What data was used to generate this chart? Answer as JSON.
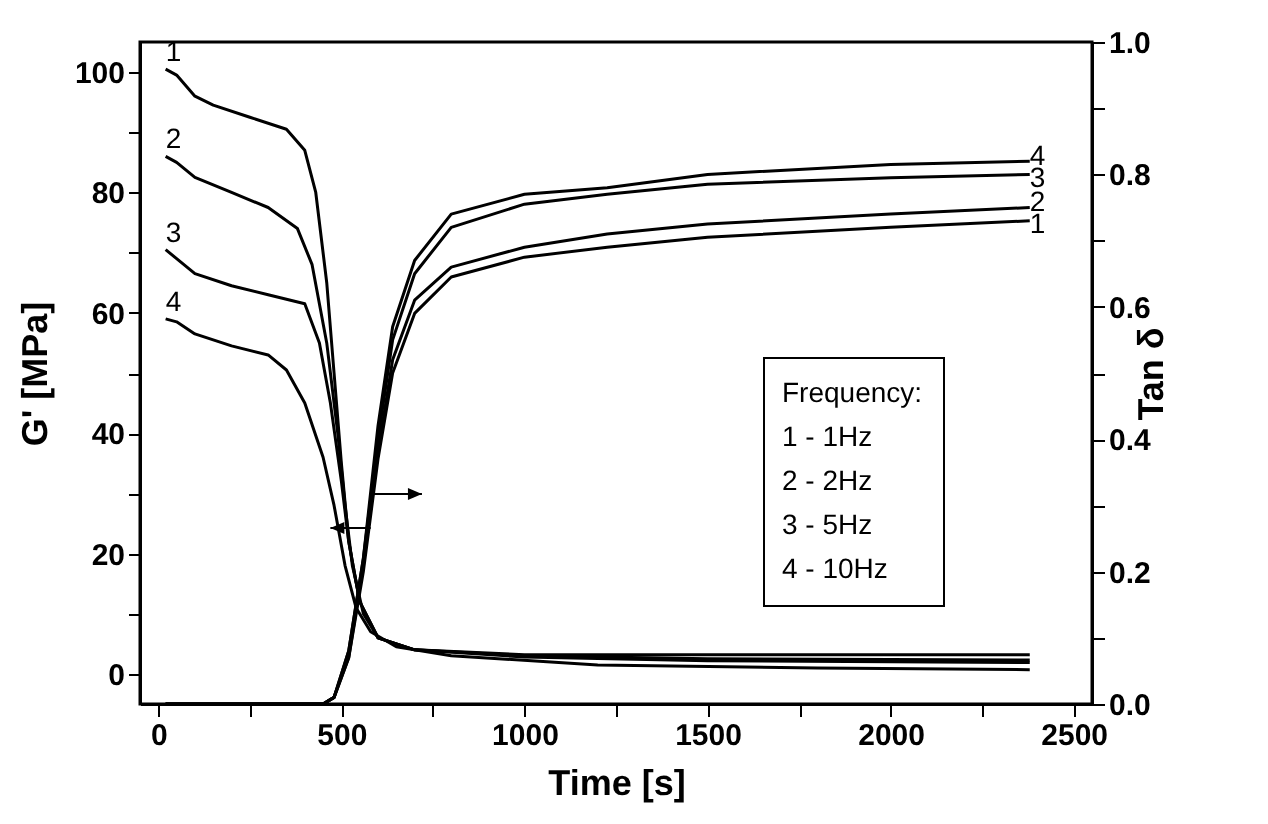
{
  "chart_data": {
    "type": "line",
    "xlabel": "Time [s]",
    "ylabel": "G' [MPa]",
    "y2label": "Tan δ",
    "annotations": [
      "Frequency:",
      "1 - 1Hz",
      "2 - 2Hz",
      "3 - 5Hz",
      "4 - 10Hz"
    ],
    "xlim": [
      -50,
      2550
    ],
    "ylim": [
      -5,
      105
    ],
    "y2lim": [
      0,
      1.0
    ],
    "xticks": [
      0,
      {
        "value": 250,
        "label": null
      },
      500,
      {
        "value": 750,
        "label": null
      },
      1000,
      {
        "value": 1250,
        "label": null
      },
      1500,
      {
        "value": 1750,
        "label": null
      },
      2000,
      {
        "value": 2250,
        "label": null
      },
      2500
    ],
    "yticks": [
      0,
      {
        "value": 10,
        "label": null
      },
      20,
      {
        "value": 30,
        "label": null
      },
      40,
      {
        "value": 50,
        "label": null
      },
      60,
      {
        "value": 70,
        "label": null
      },
      80,
      {
        "value": 90,
        "label": null
      },
      100
    ],
    "y2ticks": [
      {
        "value": 0,
        "label": "0.0"
      },
      {
        "value": 0.1,
        "label": null
      },
      {
        "value": 0.2,
        "label": "0.2"
      },
      {
        "value": 0.3,
        "label": null
      },
      {
        "value": 0.4,
        "label": "0.4"
      },
      {
        "value": 0.5,
        "label": null
      },
      {
        "value": 0.6,
        "label": "0.6"
      },
      {
        "value": 0.7,
        "label": null
      },
      {
        "value": 0.8,
        "label": "0.8"
      },
      {
        "value": 0.9,
        "label": null
      },
      {
        "value": 1.0,
        "label": "1.0"
      }
    ],
    "grid": false,
    "legend": false,
    "series": [
      {
        "name": "1",
        "color": "#000000",
        "x": [
          20,
          50,
          100,
          150,
          250,
          350,
          400,
          430,
          460,
          480,
          500,
          520,
          550,
          600,
          700,
          1000,
          1500,
          2000,
          2380
        ],
        "values": [
          100.5,
          99.5,
          96,
          94.5,
          92.5,
          90.5,
          87,
          80,
          65,
          50,
          35,
          22,
          12,
          6,
          4,
          3.2,
          3.2,
          3.2,
          3.2
        ]
      },
      {
        "name": "2",
        "color": "#000000",
        "x": [
          20,
          50,
          100,
          200,
          300,
          380,
          420,
          460,
          490,
          510,
          530,
          560,
          600,
          700,
          1000,
          1500,
          2380
        ],
        "values": [
          86,
          85,
          82.5,
          80,
          77.5,
          74,
          68,
          55,
          40,
          28,
          18,
          10,
          6,
          4,
          3,
          2.5,
          2.3
        ]
      },
      {
        "name": "3",
        "color": "#000000",
        "x": [
          20,
          50,
          100,
          200,
          300,
          400,
          440,
          470,
          500,
          520,
          550,
          600,
          700,
          1000,
          1500,
          2380
        ],
        "values": [
          70.5,
          69,
          66.5,
          64.5,
          63,
          61.5,
          55,
          45,
          32,
          22,
          12,
          6,
          4,
          2.8,
          2.2,
          1.9
        ]
      },
      {
        "name": "4",
        "color": "#000000",
        "x": [
          20,
          50,
          100,
          200,
          300,
          350,
          400,
          450,
          480,
          510,
          540,
          580,
          650,
          800,
          1200,
          1800,
          2380
        ],
        "values": [
          59,
          58.5,
          56.5,
          54.5,
          53,
          50.5,
          45,
          36,
          28,
          18,
          11,
          7,
          4.5,
          3,
          1.5,
          1,
          0.7
        ]
      },
      {
        "name": "1",
        "color": "#000000",
        "axis": "y2",
        "x": [
          20,
          450,
          480,
          520,
          560,
          600,
          640,
          700,
          800,
          1000,
          1226,
          1500,
          2000,
          2380
        ],
        "values": [
          0,
          0,
          0.01,
          0.07,
          0.2,
          0.37,
          0.5,
          0.59,
          0.645,
          0.675,
          0.69,
          0.705,
          0.72,
          0.73
        ]
      },
      {
        "name": "2",
        "color": "#000000",
        "axis": "y2",
        "x": [
          20,
          450,
          480,
          520,
          560,
          600,
          640,
          700,
          800,
          1000,
          1226,
          1500,
          2000,
          2380
        ],
        "values": [
          0,
          0,
          0.01,
          0.07,
          0.21,
          0.38,
          0.52,
          0.61,
          0.66,
          0.69,
          0.71,
          0.725,
          0.74,
          0.75
        ]
      },
      {
        "name": "3",
        "color": "#000000",
        "axis": "y2",
        "x": [
          20,
          450,
          480,
          520,
          560,
          600,
          640,
          700,
          800,
          1000,
          1226,
          1500,
          2000,
          2380
        ],
        "values": [
          0,
          0,
          0.01,
          0.08,
          0.22,
          0.4,
          0.55,
          0.65,
          0.72,
          0.755,
          0.77,
          0.785,
          0.795,
          0.8
        ]
      },
      {
        "name": "4",
        "color": "#000000",
        "axis": "y2",
        "x": [
          20,
          450,
          480,
          520,
          560,
          600,
          640,
          700,
          800,
          1000,
          1226,
          1500,
          2000,
          2380
        ],
        "values": [
          0,
          0,
          0.01,
          0.08,
          0.22,
          0.42,
          0.57,
          0.67,
          0.74,
          0.77,
          0.78,
          0.8,
          0.815,
          0.82
        ]
      }
    ]
  }
}
